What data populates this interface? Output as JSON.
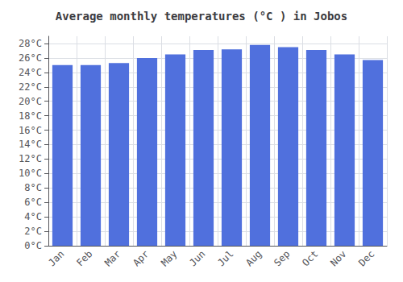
{
  "chart_data": {
    "type": "bar",
    "title": "Average monthly temperatures (°C ) in Jobos",
    "categories": [
      "Jan",
      "Feb",
      "Mar",
      "Apr",
      "May",
      "Jun",
      "Jul",
      "Aug",
      "Sep",
      "Oct",
      "Nov",
      "Dec"
    ],
    "values": [
      25.0,
      25.0,
      25.3,
      26.0,
      26.5,
      27.1,
      27.2,
      27.8,
      27.5,
      27.1,
      26.5,
      25.7
    ],
    "ylim": [
      0,
      29
    ],
    "yticks": [
      {
        "value": 0,
        "label": "0°C"
      },
      {
        "value": 2,
        "label": "2°C"
      },
      {
        "value": 4,
        "label": "4°C"
      },
      {
        "value": 6,
        "label": "6°C"
      },
      {
        "value": 8,
        "label": "8°C"
      },
      {
        "value": 10,
        "label": "10°C"
      },
      {
        "value": 12,
        "label": "12°C"
      },
      {
        "value": 14,
        "label": "14°C"
      },
      {
        "value": 16,
        "label": "16°C"
      },
      {
        "value": 18,
        "label": "18°C"
      },
      {
        "value": 20,
        "label": "20°C"
      },
      {
        "value": 22,
        "label": "22°C"
      },
      {
        "value": 24,
        "label": "24°C"
      },
      {
        "value": 26,
        "label": "26°C"
      },
      {
        "value": 28,
        "label": "28°C"
      }
    ],
    "grid": true
  }
}
